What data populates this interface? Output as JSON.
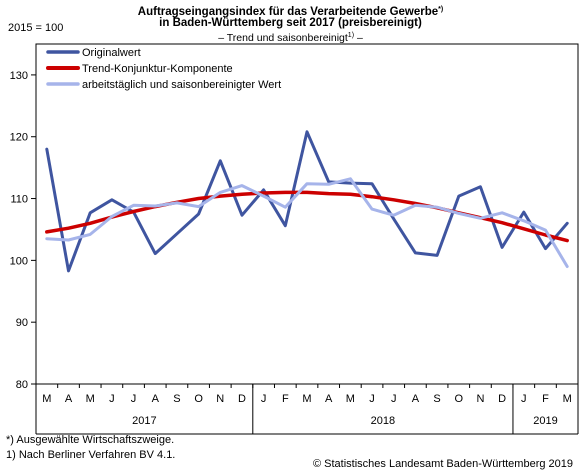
{
  "header": {
    "title_line1": "Auftragseingangsindex für das Verarbeitende Gewerbe",
    "title_line1_mark": "*)",
    "title_line2": "in Baden-Württemberg seit 2017 (preisbereinigt)",
    "subtitle": "– Trend und saisonbereinigt",
    "subtitle_mark": "1)",
    "subtitle_end": " –"
  },
  "y_axis_title": "2015 = 100",
  "footnotes": {
    "note1": "*) Ausgewählte Wirtschaftszweige.",
    "note2": "1) Nach Berliner Verfahren BV 4.1.",
    "source": "© Statistisches Landesamt Baden-Württemberg 2019"
  },
  "chart_data": {
    "type": "line",
    "x": [
      "M",
      "A",
      "M",
      "J",
      "J",
      "A",
      "S",
      "O",
      "N",
      "D",
      "J",
      "F",
      "M",
      "A",
      "M",
      "J",
      "J",
      "A",
      "S",
      "O",
      "N",
      "D",
      "J",
      "F",
      "M"
    ],
    "years": [
      {
        "label": "2017",
        "start": 0,
        "end": 9
      },
      {
        "label": "2018",
        "start": 10,
        "end": 21
      },
      {
        "label": "2019",
        "start": 22,
        "end": 24
      }
    ],
    "ylim": [
      80,
      135
    ],
    "yticks": [
      80,
      90,
      100,
      110,
      120,
      130
    ],
    "grid": false,
    "legend": "top-left",
    "series": [
      {
        "name": "Originalwert",
        "color": "#3f55a0",
        "width": 3,
        "values": [
          118.0,
          98.3,
          107.7,
          109.8,
          107.8,
          101.1,
          104.3,
          107.5,
          116.1,
          107.3,
          111.4,
          105.6,
          120.8,
          112.7,
          112.5,
          112.4,
          106.7,
          101.2,
          100.8,
          110.4,
          111.9,
          102.1,
          107.8,
          101.9,
          106.0
        ]
      },
      {
        "name": "Trend-Konjunktur-Komponente",
        "color": "#cc0000",
        "width": 3.5,
        "values": [
          104.6,
          105.2,
          106.0,
          107.0,
          107.9,
          108.7,
          109.4,
          110.0,
          110.4,
          110.7,
          110.9,
          111.0,
          111.0,
          110.8,
          110.7,
          110.3,
          109.8,
          109.2,
          108.5,
          107.7,
          106.9,
          106.1,
          105.1,
          104.1,
          103.2
        ]
      },
      {
        "name": "arbeitstäglich und saisonbereinigter Wert",
        "color": "#a6b4ea",
        "width": 3,
        "values": [
          103.5,
          103.3,
          104.2,
          107.1,
          108.9,
          108.8,
          109.3,
          108.7,
          111.0,
          112.1,
          110.4,
          108.6,
          112.4,
          112.3,
          113.2,
          108.3,
          107.3,
          108.9,
          108.6,
          107.6,
          106.8,
          107.7,
          106.4,
          104.9,
          99.0
        ]
      }
    ]
  }
}
